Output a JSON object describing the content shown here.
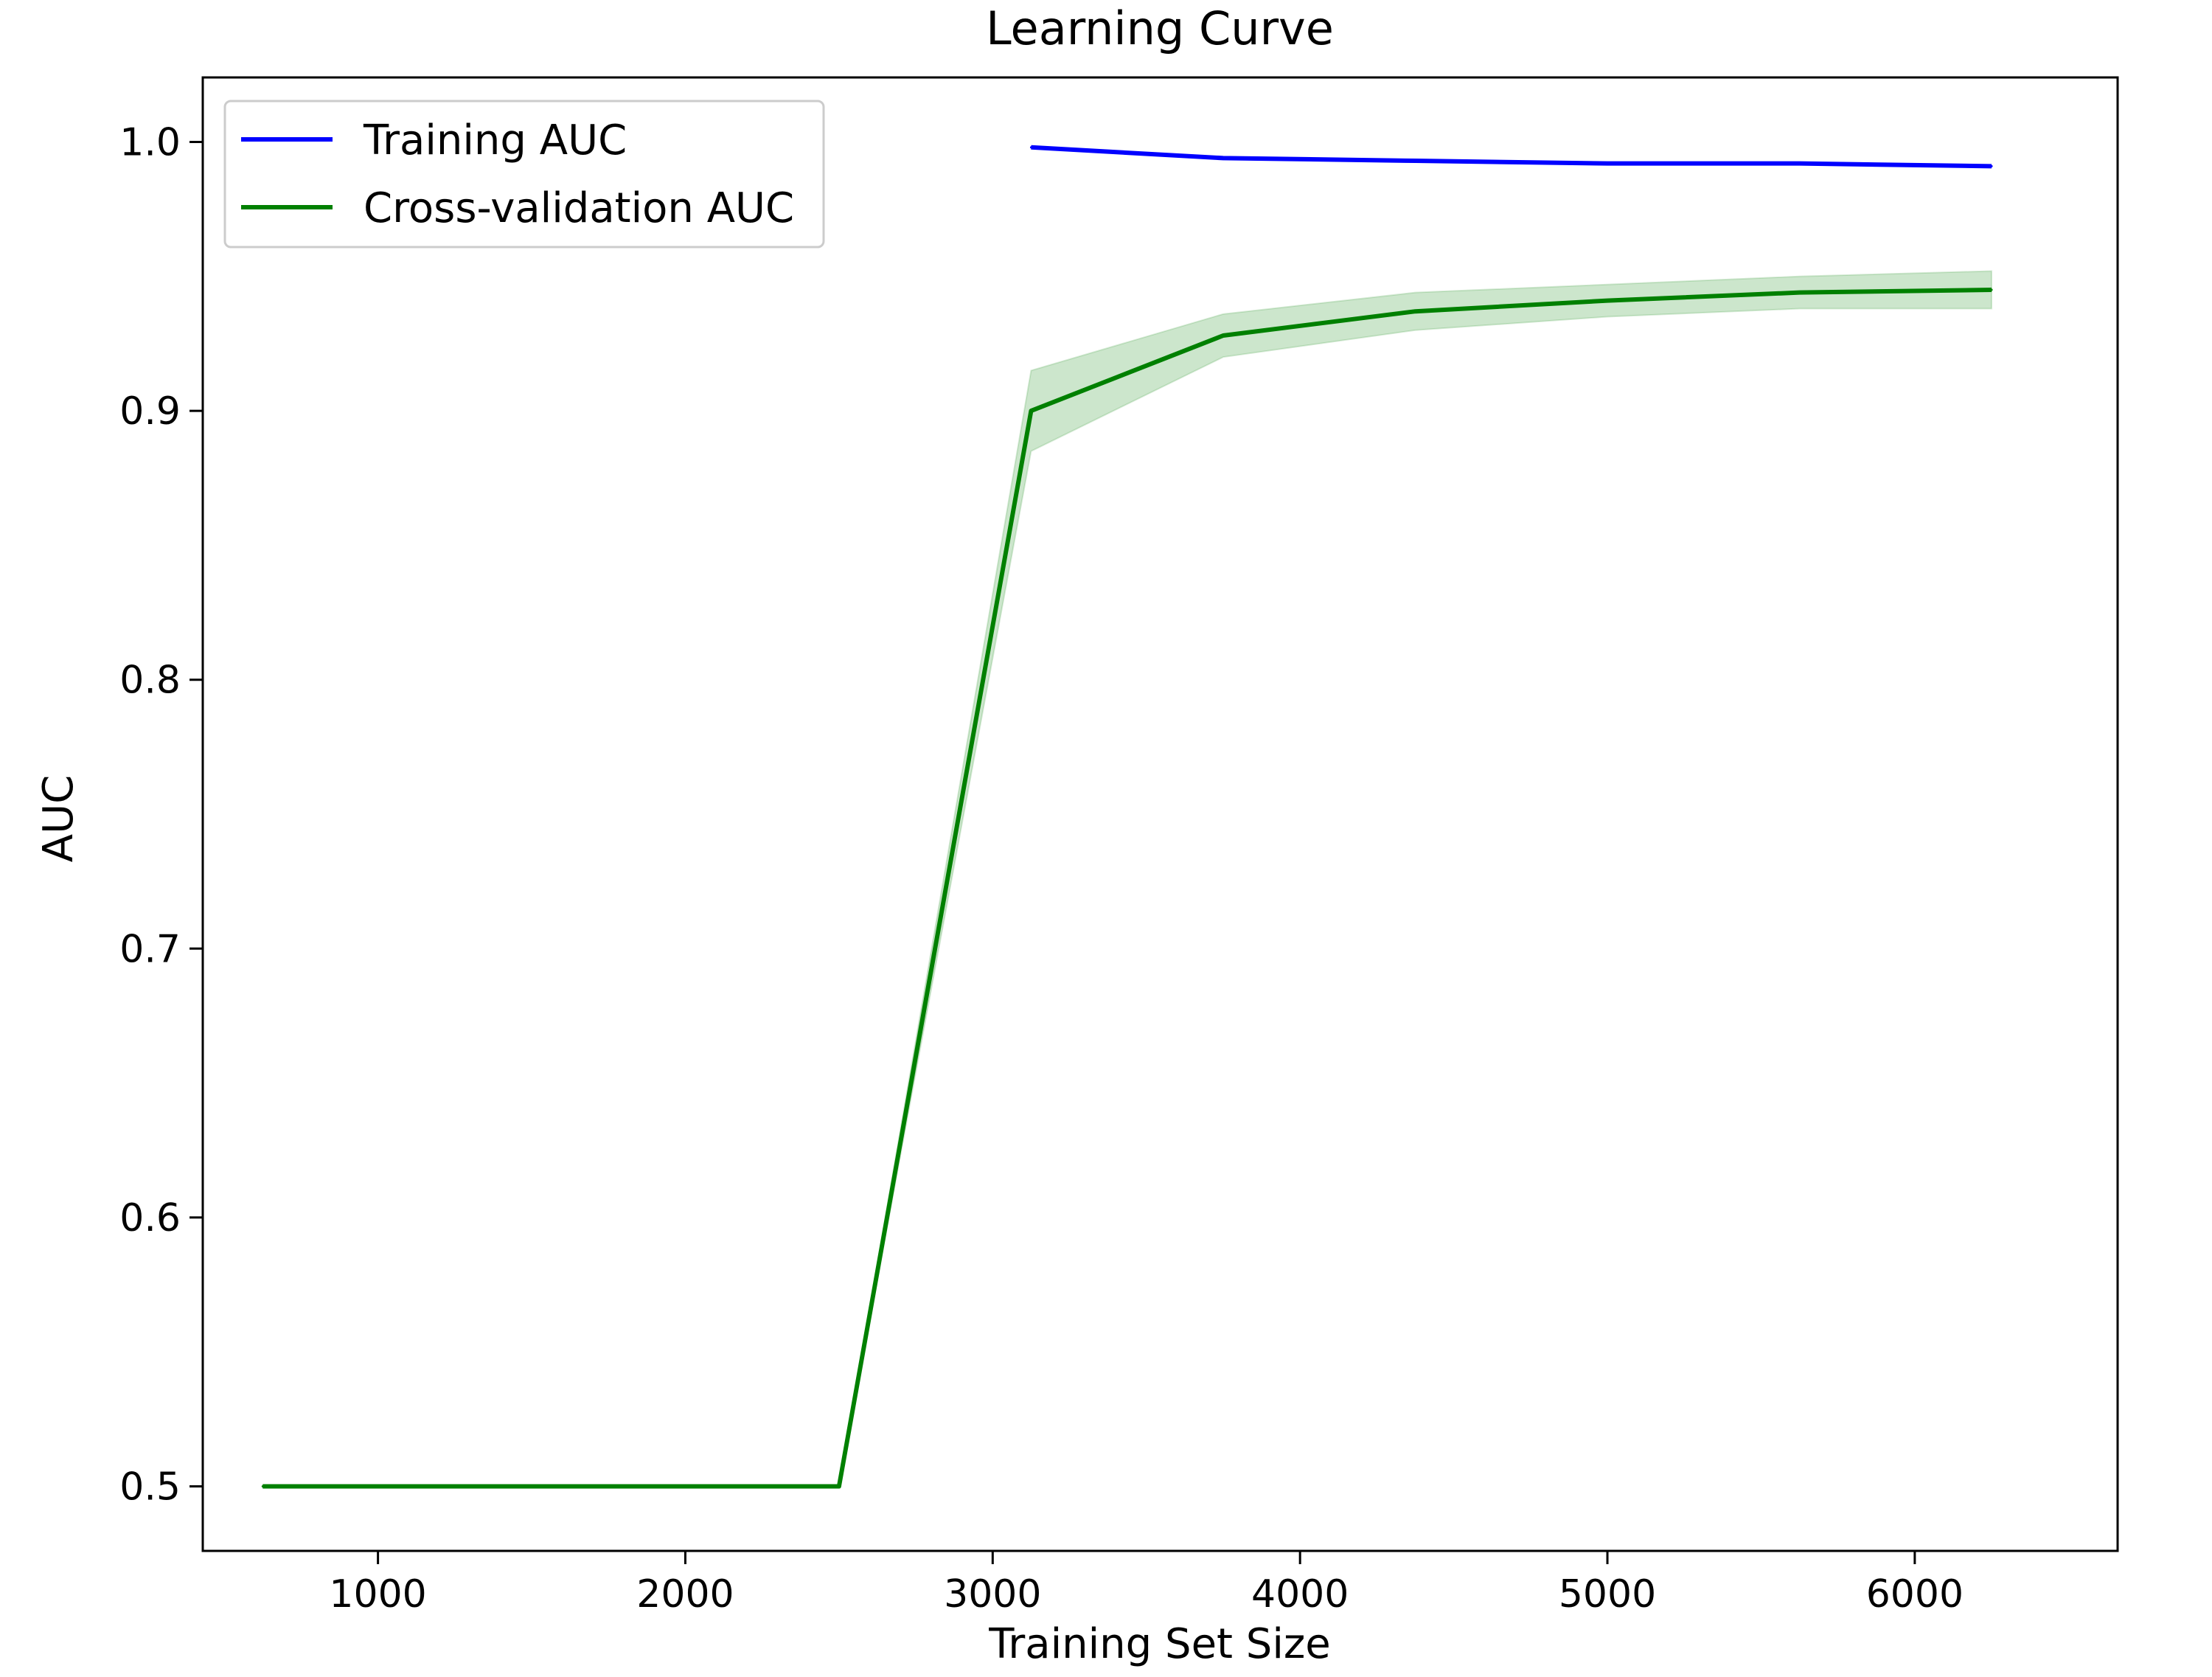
{
  "chart_data": {
    "type": "line",
    "title": "Learning Curve",
    "xlabel": "Training Set Size",
    "ylabel": "AUC",
    "xlim": [
      430,
      6660
    ],
    "ylim": [
      0.476,
      1.024
    ],
    "xticks": [
      1000,
      2000,
      3000,
      4000,
      5000,
      6000
    ],
    "yticks": [
      0.5,
      0.6,
      0.7,
      0.8,
      0.9,
      1.0
    ],
    "ytick_labels": [
      "0.5",
      "0.6",
      "0.7",
      "0.8",
      "0.9",
      "1.0"
    ],
    "grid": false,
    "legend_position": "top-left",
    "series": [
      {
        "name": "Training AUC",
        "color": "#0000ff",
        "x": [
          3125,
          3750,
          4375,
          5000,
          5625,
          6250
        ],
        "y": [
          0.998,
          0.994,
          0.993,
          0.992,
          0.992,
          0.991
        ],
        "band": null
      },
      {
        "name": "Cross-validation AUC",
        "color": "#008000",
        "band_color": "#008000",
        "x": [
          625,
          1250,
          1875,
          2500,
          3125,
          3750,
          4375,
          5000,
          5625,
          6250
        ],
        "y": [
          0.5,
          0.5,
          0.5,
          0.5,
          0.9,
          0.928,
          0.937,
          0.941,
          0.944,
          0.945
        ],
        "band": {
          "lower": [
            0.5,
            0.5,
            0.5,
            0.5,
            0.885,
            0.92,
            0.93,
            0.935,
            0.938,
            0.938
          ],
          "upper": [
            0.5,
            0.5,
            0.5,
            0.5,
            0.915,
            0.936,
            0.944,
            0.947,
            0.95,
            0.952
          ]
        }
      }
    ]
  }
}
